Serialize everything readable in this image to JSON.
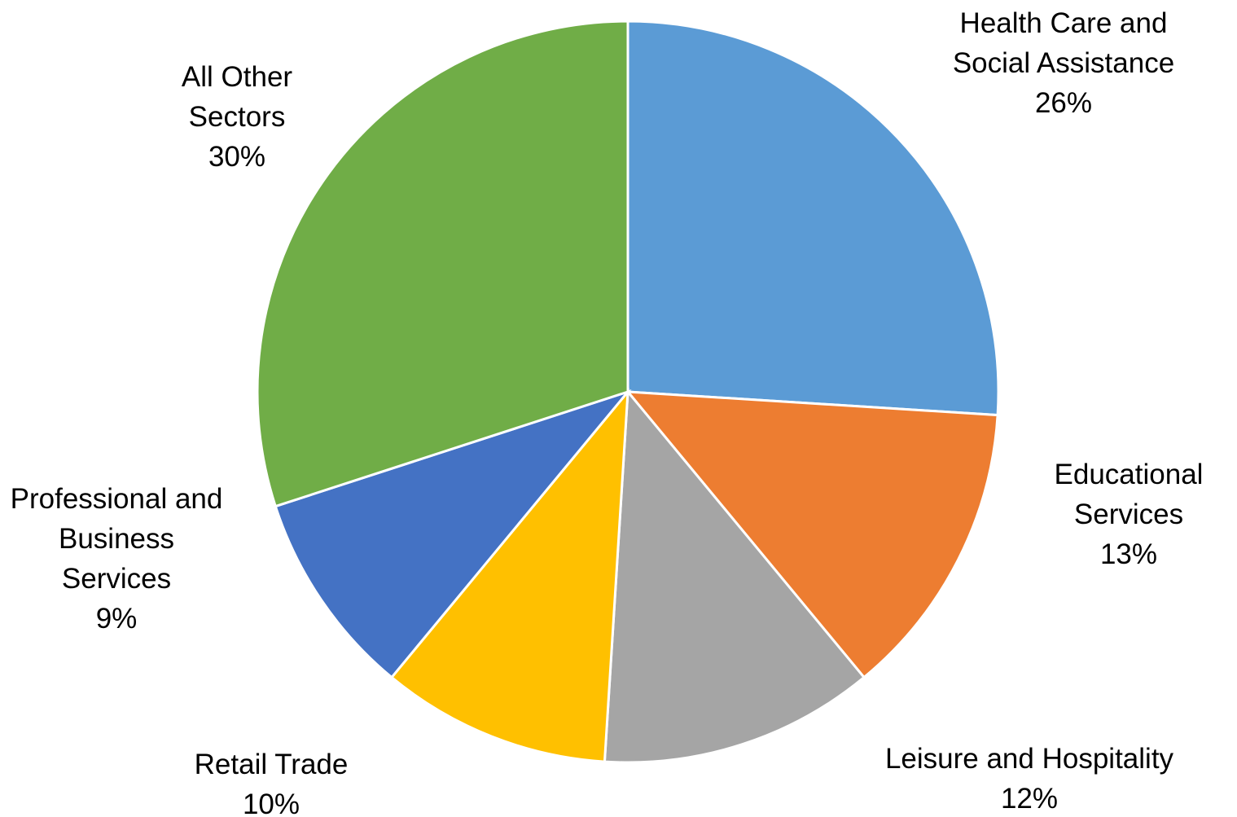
{
  "chart_data": {
    "type": "pie",
    "categories": [
      "Health Care and Social Assistance",
      "Educational Services",
      "Leisure and Hospitality",
      "Retail Trade",
      "Professional and Business Services",
      "All Other Sectors"
    ],
    "values": [
      26,
      13,
      12,
      10,
      9,
      30
    ],
    "value_labels": [
      "26%",
      "13%",
      "12%",
      "10%",
      "9%",
      "30%"
    ],
    "colors": [
      "#5b9bd5",
      "#ed7d31",
      "#a5a5a5",
      "#ffc000",
      "#4472c4",
      "#70ad47"
    ]
  }
}
